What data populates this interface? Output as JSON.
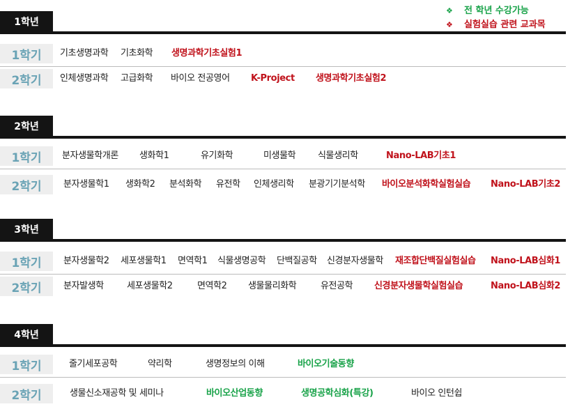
{
  "legend": {
    "bullet": "❖",
    "items": [
      {
        "text": "전 학년 수강가능",
        "color": "#1aa34a"
      },
      {
        "text": "실험실습 관련 교과목",
        "color": "#c0121b"
      }
    ]
  },
  "years": [
    {
      "title": "1학년",
      "semesters": [
        {
          "label": "1학기",
          "courses": [
            {
              "name": "기초생명과학",
              "type": "normal"
            },
            {
              "name": "기초화학",
              "type": "normal"
            },
            {
              "name": "생명과학기초실험1",
              "type": "lab"
            }
          ]
        },
        {
          "label": "2학기",
          "courses": [
            {
              "name": "인체생명과학",
              "type": "normal"
            },
            {
              "name": "고급화학",
              "type": "normal"
            },
            {
              "name": "바이오 전공영어",
              "type": "normal"
            },
            {
              "name": "K-Project",
              "type": "lab"
            },
            {
              "name": "생명과학기초실험2",
              "type": "lab"
            }
          ]
        }
      ]
    },
    {
      "title": "2학년",
      "semesters": [
        {
          "label": "1학기",
          "courses": [
            {
              "name": "분자생물학개론",
              "type": "normal"
            },
            {
              "name": "생화학1",
              "type": "normal"
            },
            {
              "name": "유기화학",
              "type": "normal"
            },
            {
              "name": "미생물학",
              "type": "normal"
            },
            {
              "name": "식물생리학",
              "type": "normal"
            },
            {
              "name": "Nano-LAB기초1",
              "type": "lab"
            }
          ]
        },
        {
          "label": "2학기",
          "courses": [
            {
              "name": "분자생물학1",
              "type": "normal"
            },
            {
              "name": "생화학2",
              "type": "normal"
            },
            {
              "name": "분석화학",
              "type": "normal"
            },
            {
              "name": "유전학",
              "type": "normal"
            },
            {
              "name": "인체생리학",
              "type": "normal"
            },
            {
              "name": "분광기기분석학",
              "type": "normal"
            },
            {
              "name": "바이오분석화학실험실습",
              "type": "lab"
            },
            {
              "name": "Nano-LAB기초2",
              "type": "lab"
            }
          ]
        }
      ]
    },
    {
      "title": "3학년",
      "semesters": [
        {
          "label": "1학기",
          "courses": [
            {
              "name": "분자생물학2",
              "type": "normal"
            },
            {
              "name": "세포생물학1",
              "type": "normal"
            },
            {
              "name": "면역학1",
              "type": "normal"
            },
            {
              "name": "식물생명공학",
              "type": "normal"
            },
            {
              "name": "단백질공학",
              "type": "normal"
            },
            {
              "name": "신경분자생물학",
              "type": "normal"
            },
            {
              "name": "재조합단백질실험실습",
              "type": "lab"
            },
            {
              "name": "Nano-LAB심화1",
              "type": "lab"
            }
          ]
        },
        {
          "label": "2학기",
          "courses": [
            {
              "name": "분자발생학",
              "type": "normal"
            },
            {
              "name": "세포생물학2",
              "type": "normal"
            },
            {
              "name": "면역학2",
              "type": "normal"
            },
            {
              "name": "생물물리화학",
              "type": "normal"
            },
            {
              "name": "유전공학",
              "type": "normal"
            },
            {
              "name": "신경분자생물학실험실습",
              "type": "lab"
            },
            {
              "name": "Nano-LAB심화2",
              "type": "lab"
            }
          ]
        }
      ]
    },
    {
      "title": "4학년",
      "semesters": [
        {
          "label": "1학기",
          "courses": [
            {
              "name": "줄기세포공학",
              "type": "normal"
            },
            {
              "name": "약리학",
              "type": "normal"
            },
            {
              "name": "생명정보의 이해",
              "type": "normal"
            },
            {
              "name": "바이오기술동향",
              "type": "all"
            }
          ]
        },
        {
          "label": "2학기",
          "courses": [
            {
              "name": "생물신소재공학 및 세미나",
              "type": "normal"
            },
            {
              "name": "바이오산업동향",
              "type": "all"
            },
            {
              "name": "생명공학심화(특강)",
              "type": "all"
            },
            {
              "name": "바이오 인턴쉽",
              "type": "normal"
            }
          ]
        }
      ]
    }
  ]
}
